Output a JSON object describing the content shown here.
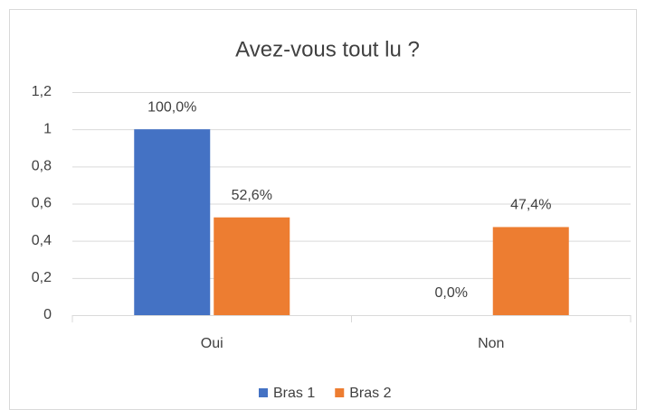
{
  "chart_data": {
    "type": "bar",
    "title": "Avez-vous tout lu ?",
    "categories": [
      "Oui",
      "Non"
    ],
    "series": [
      {
        "name": "Bras 1",
        "color": "#4472c4",
        "values": [
          1,
          0
        ],
        "value_labels": [
          "100,0%",
          "0,0%"
        ]
      },
      {
        "name": "Bras 2",
        "color": "#ed7d31",
        "values": [
          0.526,
          0.474
        ],
        "value_labels": [
          "52,6%",
          "47,4%"
        ]
      }
    ],
    "ylim": [
      0,
      1.2
    ],
    "yticks": [
      0,
      {
        "value": 0.2,
        "label": "0,2"
      },
      {
        "value": 0.4,
        "label": "0,4"
      },
      {
        "value": 0.6,
        "label": "0,6"
      },
      {
        "value": 0.8,
        "label": "0,8"
      },
      1,
      {
        "value": 1.2,
        "label": "1,2"
      }
    ],
    "grid": true,
    "legend": "bottom"
  }
}
